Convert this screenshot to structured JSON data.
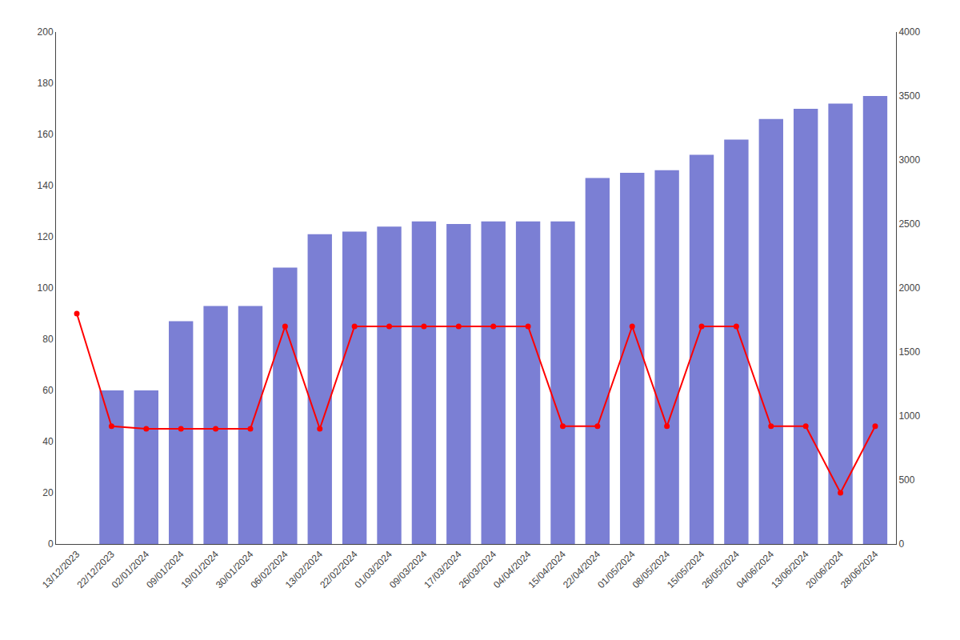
{
  "chart_data": {
    "type": "bar",
    "categories": [
      "13/12/2023",
      "22/12/2023",
      "02/01/2024",
      "09/01/2024",
      "19/01/2024",
      "30/01/2024",
      "06/02/2024",
      "13/02/2024",
      "22/02/2024",
      "01/03/2024",
      "09/03/2024",
      "17/03/2024",
      "26/03/2024",
      "04/04/2024",
      "15/04/2024",
      "22/04/2024",
      "01/05/2024",
      "08/05/2024",
      "15/05/2024",
      "26/05/2024",
      "04/06/2024",
      "13/06/2024",
      "20/06/2024",
      "28/06/2024"
    ],
    "series": [
      {
        "type": "bar",
        "color": "#7B7FD4",
        "values": [
          0,
          60,
          60,
          87,
          93,
          93,
          108,
          121,
          122,
          124,
          126,
          125,
          126,
          126,
          126,
          143,
          145,
          146,
          152,
          158,
          166,
          170,
          172,
          175
        ]
      },
      {
        "type": "line",
        "axis": "y2",
        "color": "#FF0000",
        "marker": "circle",
        "values": [
          1800,
          920,
          900,
          900,
          900,
          900,
          1700,
          900,
          1700,
          1700,
          1700,
          1700,
          1700,
          1700,
          920,
          920,
          1700,
          920,
          1700,
          1700,
          920,
          920,
          400,
          920
        ]
      }
    ],
    "ylim": [
      0,
      200
    ],
    "yticks": [
      0,
      20,
      40,
      60,
      80,
      100,
      120,
      140,
      160,
      180,
      200
    ],
    "y2lim": [
      0,
      4000
    ],
    "y2ticks": [
      0,
      500,
      1000,
      1500,
      2000,
      2500,
      3000,
      3500,
      4000
    ],
    "grid": false
  }
}
